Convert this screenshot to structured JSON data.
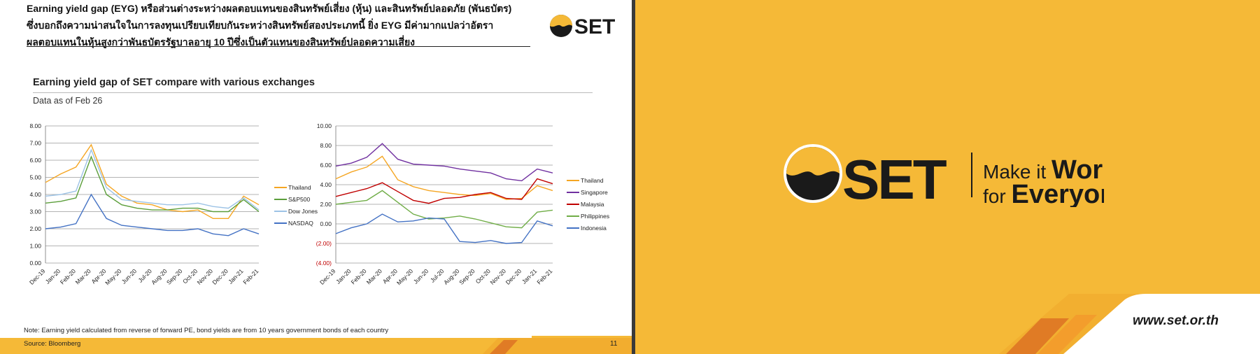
{
  "left_slide": {
    "heading_lines": [
      "Earning yield gap (EYG) หรือส่วนต่างระหว่างผลตอบแทนของสินทรัพย์เสี่ยง (หุ้น) และสินทรัพย์ปลอดภัย (พันธบัตร)",
      "ซึ่งบอกถึงความน่าสนใจในการลงทุนเปรียบเทียบกันระหว่างสินทรัพย์สองประเภทนี้ ยิ่ง EYG มีค่ามากแปลว่าอัตรา",
      "ผลตอบแทนในหุ้นสูงกว่าพันธบัตรรัฐบาลอายุ 10 ปีซึ่งเป็นตัวแทนของสินทรัพย์ปลอดความเสี่ยง"
    ],
    "logo_text": "SET",
    "chart_title": "Earning yield gap of SET compare with various exchanges",
    "chart_subtitle": "Data as of Feb 26",
    "note": "Note: Earning yield calculated from reverse of forward PE, bond yields are from 10 years government bonds of each country",
    "source": "Source: Bloomberg",
    "page_number": "11"
  },
  "right_slide": {
    "logo_text": "SET",
    "tagline_line1_a": "Make it ",
    "tagline_line1_b": "Work",
    "tagline_line2_a": "for ",
    "tagline_line2_b": "Everyone",
    "url": "www.set.or.th"
  },
  "colors": {
    "brand_yellow": "#F5B937",
    "thailand": "#F5A623",
    "sp500": "#5B9E3A",
    "dow_jones": "#9DC3E6",
    "nasdaq": "#4472C4",
    "singapore": "#7030A0",
    "malaysia": "#C00000",
    "philippines": "#70AD47",
    "indonesia": "#4472C4",
    "negative_label": "#C00000"
  },
  "chart_data": [
    {
      "type": "line",
      "x": [
        "Dec-19",
        "Jan-20",
        "Feb-20",
        "Mar-20",
        "Apr-20",
        "May-20",
        "Jun-20",
        "Jul-20",
        "Aug-20",
        "Sep-20",
        "Oct-20",
        "Nov-20",
        "Dec-20",
        "Jan-21",
        "Feb-21"
      ],
      "yticks": [
        "0.00",
        "1.00",
        "2.00",
        "3.00",
        "4.00",
        "5.00",
        "6.00",
        "7.00",
        "8.00"
      ],
      "ylim": [
        0,
        8
      ],
      "legend_position": "right",
      "grid": true,
      "series": [
        {
          "name": "Thailand",
          "color": "#F5A623",
          "values": [
            4.7,
            5.2,
            5.6,
            6.9,
            4.6,
            3.9,
            3.5,
            3.4,
            3.1,
            3.0,
            3.1,
            2.6,
            2.6,
            3.9,
            3.4
          ]
        },
        {
          "name": "S&P500",
          "color": "#5B9E3A",
          "values": [
            3.5,
            3.6,
            3.8,
            6.2,
            4.0,
            3.4,
            3.2,
            3.1,
            3.1,
            3.2,
            3.2,
            3.0,
            3.0,
            3.7,
            3.0
          ]
        },
        {
          "name": "Dow Jones",
          "color": "#9DC3E6",
          "values": [
            3.9,
            4.0,
            4.2,
            6.6,
            4.4,
            3.7,
            3.6,
            3.5,
            3.4,
            3.4,
            3.5,
            3.3,
            3.2,
            3.8,
            3.1
          ]
        },
        {
          "name": "NASDAQ",
          "color": "#4472C4",
          "values": [
            2.0,
            2.1,
            2.3,
            4.0,
            2.6,
            2.2,
            2.1,
            2.0,
            1.9,
            1.9,
            2.0,
            1.7,
            1.6,
            2.0,
            1.7
          ]
        }
      ]
    },
    {
      "type": "line",
      "x": [
        "Dec-19",
        "Jan-20",
        "Feb-20",
        "Mar-20",
        "Apr-20",
        "May-20",
        "Jun-20",
        "Jul-20",
        "Aug-20",
        "Sep-20",
        "Oct-20",
        "Nov-20",
        "Dec-20",
        "Jan-21",
        "Feb-21"
      ],
      "yticks": [
        "(4.00)",
        "(2.00)",
        "0.00",
        "2.00",
        "4.00",
        "6.00",
        "8.00",
        "10.00"
      ],
      "ylim": [
        -4,
        10
      ],
      "legend_position": "right",
      "grid": true,
      "series": [
        {
          "name": "Thailand",
          "color": "#F5A623",
          "values": [
            4.6,
            5.3,
            5.8,
            6.9,
            4.5,
            3.8,
            3.4,
            3.2,
            3.0,
            2.9,
            3.1,
            2.5,
            2.6,
            3.9,
            3.4
          ]
        },
        {
          "name": "Singapore",
          "color": "#7030A0",
          "values": [
            5.9,
            6.2,
            6.8,
            8.2,
            6.6,
            6.1,
            6.0,
            5.9,
            5.6,
            5.4,
            5.2,
            4.6,
            4.4,
            5.6,
            5.2
          ]
        },
        {
          "name": "Malaysia",
          "color": "#C00000",
          "values": [
            2.8,
            3.2,
            3.6,
            4.2,
            3.3,
            2.4,
            2.1,
            2.6,
            2.7,
            3.0,
            3.2,
            2.6,
            2.5,
            4.6,
            4.1
          ]
        },
        {
          "name": "Philippines",
          "color": "#70AD47",
          "values": [
            2.0,
            2.2,
            2.4,
            3.4,
            2.2,
            1.0,
            0.5,
            0.6,
            0.8,
            0.5,
            0.1,
            -0.3,
            -0.4,
            1.2,
            1.4
          ]
        },
        {
          "name": "Indonesia",
          "color": "#4472C4",
          "values": [
            -1.0,
            -0.4,
            0.0,
            1.0,
            0.2,
            0.3,
            0.6,
            0.5,
            -1.8,
            -1.9,
            -1.7,
            -2.0,
            -1.9,
            0.3,
            -0.2
          ]
        }
      ]
    }
  ]
}
